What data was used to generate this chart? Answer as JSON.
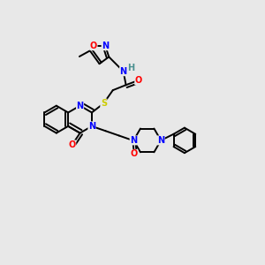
{
  "background_color": "#e8e8e8",
  "bond_color": "#000000",
  "atom_colors": {
    "N": "#0000ff",
    "O": "#ff0000",
    "S": "#cccc00",
    "H": "#4a9090",
    "C": "#000000"
  },
  "figsize": [
    3.0,
    3.0
  ],
  "dpi": 100
}
